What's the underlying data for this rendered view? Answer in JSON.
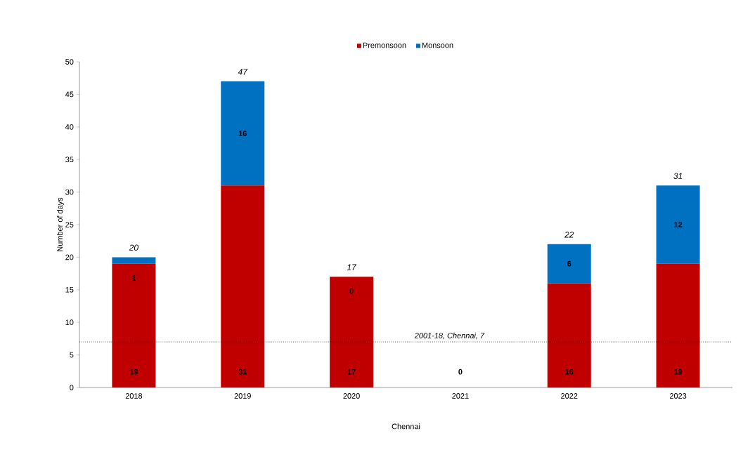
{
  "chart_data": {
    "type": "bar",
    "stacked": true,
    "xlabel": "Chennai",
    "ylabel": "Number of days",
    "categories": [
      "2018",
      "2019",
      "2020",
      "2021",
      "2022",
      "2023"
    ],
    "series": [
      {
        "name": "Premonsoon",
        "color": "#c00000",
        "values": [
          19,
          31,
          17,
          0,
          16,
          19
        ],
        "value_labels": [
          "19",
          "31",
          "17",
          "0",
          "16",
          "19"
        ]
      },
      {
        "name": "Monsoon",
        "color": "#0070c0",
        "values": [
          1,
          16,
          0,
          0,
          6,
          12
        ],
        "value_labels": [
          "1",
          "16",
          "0",
          null,
          "6",
          "12"
        ]
      }
    ],
    "totals": [
      "20",
      "47",
      "17",
      null,
      "22",
      "31"
    ],
    "ylim": [
      0,
      50
    ],
    "yticks": [
      0,
      5,
      10,
      15,
      20,
      25,
      30,
      35,
      40,
      45,
      50
    ],
    "ref_lines": [
      {
        "axis": "y",
        "value": 7,
        "label": "2001-18, Chennai, 7",
        "color": "#000000",
        "line_style": "dotted"
      }
    ],
    "legend": "top",
    "grid": false
  }
}
